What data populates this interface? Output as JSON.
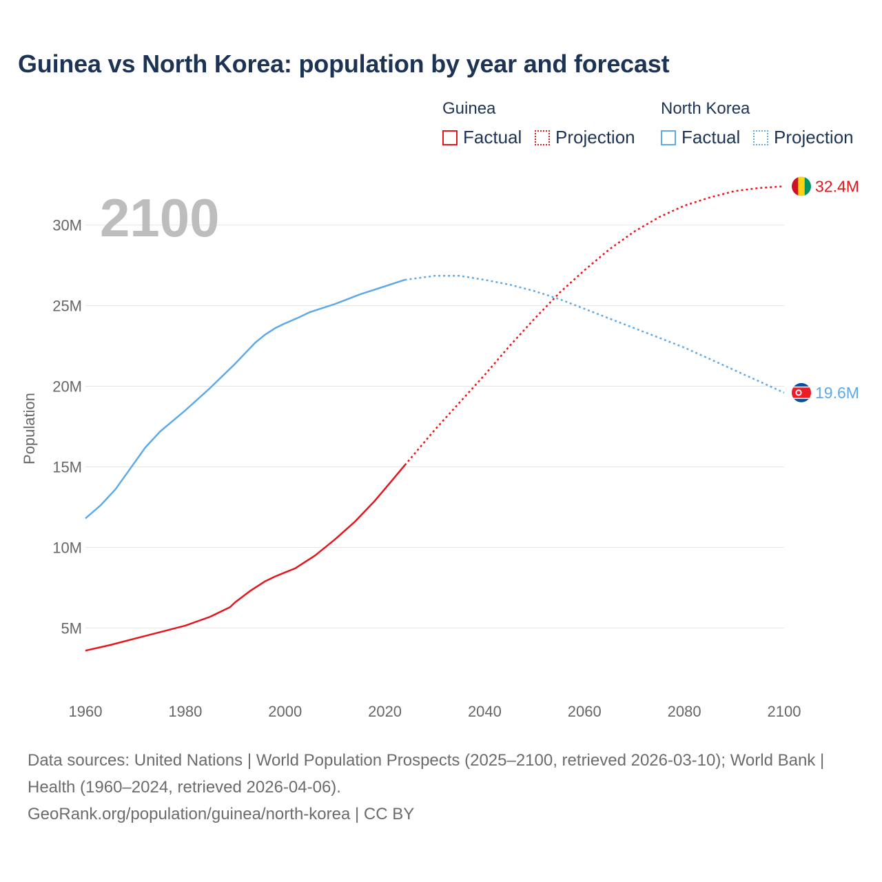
{
  "title": "Guinea vs North Korea: population by year and forecast",
  "legend": {
    "groups": [
      {
        "name": "Guinea",
        "color": "#e8141c",
        "factual": "Factual",
        "projection": "Projection"
      },
      {
        "name": "North Korea",
        "color": "#5ea9e8",
        "factual": "Factual",
        "projection": "Projection"
      }
    ]
  },
  "chart_data": {
    "type": "line",
    "title": "Guinea vs North Korea: population by year and forecast",
    "xlabel": "",
    "ylabel": "Population",
    "xlim": [
      1960,
      2100
    ],
    "ylim": [
      1000000,
      34000000
    ],
    "x_ticks": [
      1960,
      1980,
      2000,
      2020,
      2040,
      2060,
      2080,
      2100
    ],
    "x_tick_labels": [
      "1960",
      "1980",
      "2000",
      "2020",
      "2040",
      "2060",
      "2080",
      "2100"
    ],
    "y_ticks": [
      5000000,
      10000000,
      15000000,
      20000000,
      25000000,
      30000000
    ],
    "y_tick_labels": [
      "5M",
      "10M",
      "15M",
      "20M",
      "25M",
      "30M"
    ],
    "grid": true,
    "current_year_label": "2100",
    "series": [
      {
        "name": "Guinea",
        "color": "#e8141c",
        "end_label": "32.4M",
        "factual": {
          "x": [
            1960,
            1965,
            1970,
            1975,
            1980,
            1985,
            1989,
            1990,
            1993,
            1996,
            1998,
            2000,
            2002,
            2006,
            2010,
            2014,
            2018,
            2021,
            2024
          ],
          "y": [
            3600000,
            3950000,
            4350000,
            4750000,
            5150000,
            5700000,
            6300000,
            6600000,
            7300000,
            7900000,
            8200000,
            8450000,
            8700000,
            9500000,
            10500000,
            11600000,
            12900000,
            14000000,
            15100000
          ]
        },
        "projection": {
          "x": [
            2024,
            2030,
            2035,
            2040,
            2045,
            2050,
            2055,
            2060,
            2065,
            2070,
            2075,
            2080,
            2085,
            2090,
            2095,
            2100
          ],
          "y": [
            15100000,
            17300000,
            19000000,
            20700000,
            22500000,
            24200000,
            25800000,
            27200000,
            28500000,
            29600000,
            30500000,
            31200000,
            31700000,
            32100000,
            32300000,
            32400000
          ]
        }
      },
      {
        "name": "North Korea",
        "color": "#5ea9e8",
        "end_label": "19.6M",
        "factual": {
          "x": [
            1960,
            1963,
            1966,
            1969,
            1972,
            1975,
            1980,
            1985,
            1990,
            1994,
            1996,
            1998,
            2000,
            2003,
            2005,
            2010,
            2015,
            2020,
            2024
          ],
          "y": [
            11800000,
            12600000,
            13600000,
            14900000,
            16200000,
            17200000,
            18500000,
            19900000,
            21400000,
            22700000,
            23200000,
            23600000,
            23900000,
            24300000,
            24600000,
            25100000,
            25700000,
            26200000,
            26600000
          ]
        },
        "projection": {
          "x": [
            2024,
            2030,
            2035,
            2040,
            2045,
            2050,
            2055,
            2060,
            2065,
            2070,
            2075,
            2080,
            2085,
            2090,
            2095,
            2100
          ],
          "y": [
            26600000,
            26850000,
            26850000,
            26600000,
            26300000,
            25900000,
            25400000,
            24800000,
            24200000,
            23600000,
            23000000,
            22400000,
            21700000,
            21000000,
            20300000,
            19600000
          ]
        }
      }
    ]
  },
  "footer": {
    "sources": "Data sources: United Nations | World Population Prospects (2025–2100, retrieved 2026-03-10); World Bank | Health (1960–2024, retrieved 2026-04-06).",
    "attribution": "GeoRank.org/population/guinea/north-korea | CC BY"
  }
}
